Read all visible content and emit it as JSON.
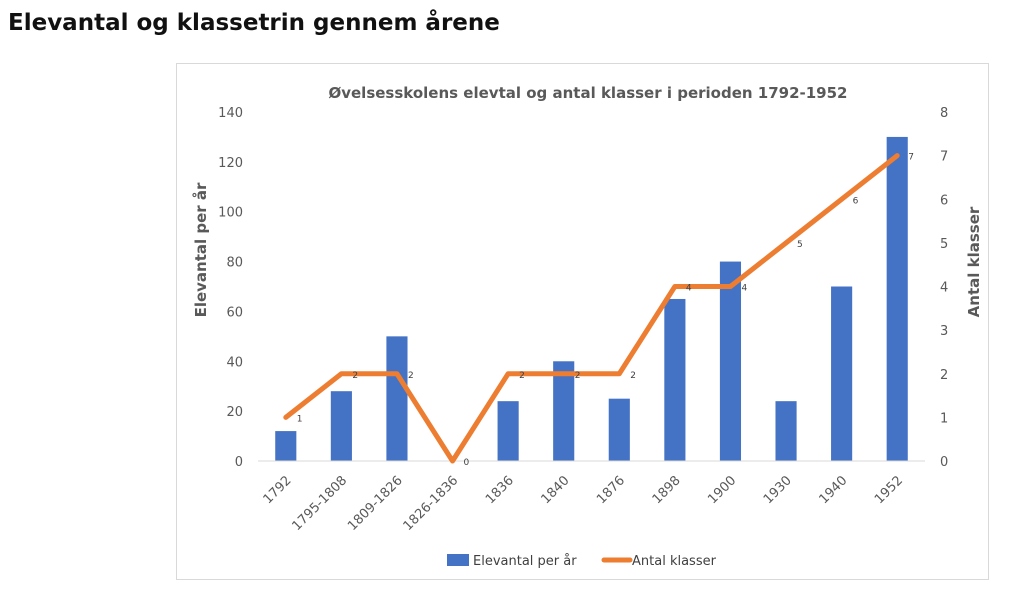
{
  "page": {
    "heading": "Elevantal og klassetrin gennem årene"
  },
  "colors": {
    "bar": "#4472c4",
    "line": "#ed7d31"
  },
  "chart_data": {
    "type": "bar",
    "title": "Øvelsesskolens elevtal og antal klasser i perioden 1792-1952",
    "xlabel": "",
    "ylabel": "Elevantal per år",
    "y2label": "Antal klasser",
    "categories": [
      "1792",
      "1795-1808",
      "1809-1826",
      "1826-1836",
      "1836",
      "1840",
      "1876",
      "1898",
      "1900",
      "1930",
      "1940",
      "1952"
    ],
    "series": [
      {
        "name": "Elevantal per år",
        "type": "bar",
        "axis": "left",
        "values": [
          12,
          28,
          50,
          0,
          24,
          40,
          25,
          65,
          80,
          24,
          70,
          130
        ]
      },
      {
        "name": "Antal klasser",
        "type": "line",
        "axis": "right",
        "values": [
          1,
          2,
          2,
          0,
          2,
          2,
          2,
          4,
          4,
          5,
          6,
          7
        ],
        "data_labels": [
          "1",
          "2",
          "2",
          "0",
          "2",
          "2",
          "2",
          "4",
          "4",
          "5",
          "6",
          "7"
        ]
      }
    ],
    "ylim": [
      0,
      140
    ],
    "yticks": [
      "0",
      "20",
      "40",
      "60",
      "80",
      "100",
      "120",
      "140"
    ],
    "y2lim": [
      0,
      8
    ],
    "y2ticks": [
      "0",
      "1",
      "2",
      "3",
      "4",
      "5",
      "6",
      "7",
      "8"
    ],
    "grid": false,
    "legend": "bottom"
  }
}
